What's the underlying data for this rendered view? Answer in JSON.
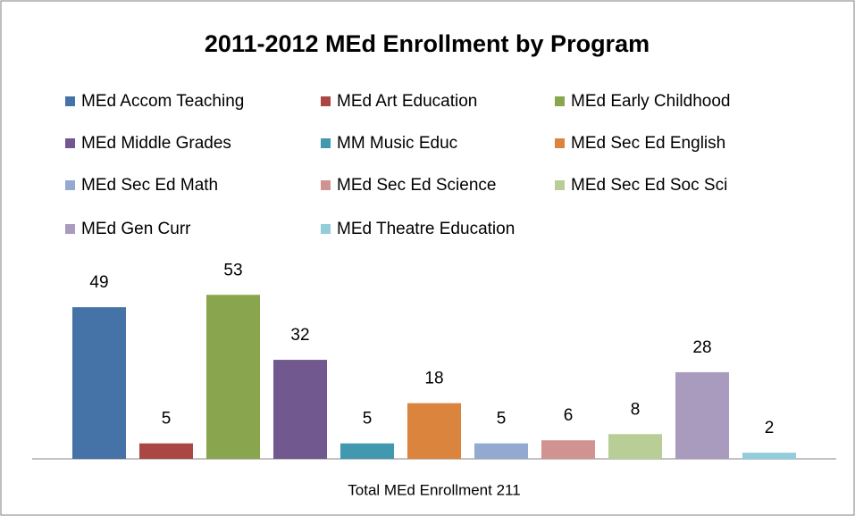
{
  "chart_data": {
    "type": "bar",
    "title": "2011-2012 MEd Enrollment by Program",
    "x_label": "Total MEd Enrollment 211",
    "categories": [
      null
    ],
    "ylim": [
      0,
      60
    ],
    "series": [
      {
        "name": "MEd Accom Teaching",
        "color": "#4572a7",
        "values": [
          49
        ]
      },
      {
        "name": "MEd Art Education",
        "color": "#aa4643",
        "values": [
          5
        ]
      },
      {
        "name": "MEd Early Childhood",
        "color": "#89a54e",
        "values": [
          53
        ]
      },
      {
        "name": "MEd Middle Grades",
        "color": "#71588f",
        "values": [
          32
        ]
      },
      {
        "name": "MM Music Educ",
        "color": "#4198af",
        "values": [
          5
        ]
      },
      {
        "name": "MEd Sec Ed English",
        "color": "#db843d",
        "values": [
          18
        ]
      },
      {
        "name": "MEd Sec Ed Math",
        "color": "#93a9cf",
        "values": [
          5
        ]
      },
      {
        "name": "MEd Sec Ed Science",
        "color": "#d19392",
        "values": [
          6
        ]
      },
      {
        "name": "MEd Sec Ed Soc Sci",
        "color": "#b9cd96",
        "values": [
          8
        ]
      },
      {
        "name": "MEd Gen Curr",
        "color": "#a99bbd",
        "values": [
          28
        ]
      },
      {
        "name": "MEd Theatre Education",
        "color": "#92cddc",
        "values": [
          2
        ]
      }
    ]
  }
}
